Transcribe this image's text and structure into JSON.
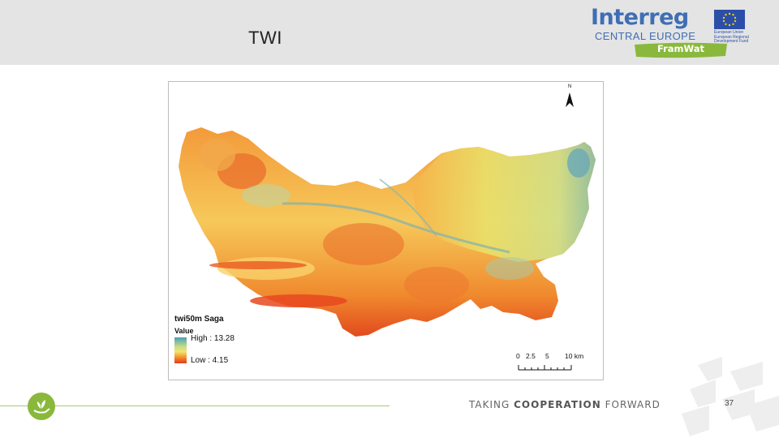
{
  "slide": {
    "title": "TWI",
    "page_number": "37"
  },
  "logo": {
    "brand": "Interreg",
    "program": "CENTRAL EUROPE",
    "eu_text": "European Union European Regional Development Fund",
    "project": "FramWat"
  },
  "map": {
    "north_label": "N",
    "legend": {
      "title": "twi50m Saga",
      "value_label": "Value",
      "high": "High : 13.28",
      "low": "Low : 4.15"
    },
    "scale_labels": [
      "0",
      "2.5",
      "5",
      "10 km"
    ]
  },
  "footer": {
    "tag_plain_1": "TAKING ",
    "tag_bold": "COOPERATION",
    "tag_plain_2": " FORWARD"
  },
  "colors": {
    "header_bg": "#e4e4e4",
    "brand_blue": "#3f6eb4",
    "framwat_green": "#8ab83c",
    "twi_high": "#4a9fb5",
    "twi_mid": "#f4e46c",
    "twi_low": "#e23b1c"
  }
}
